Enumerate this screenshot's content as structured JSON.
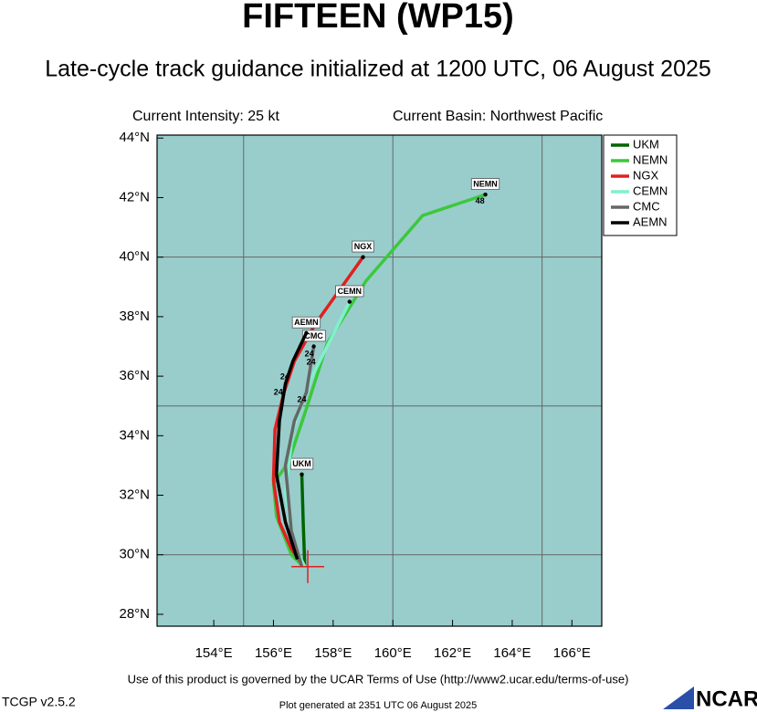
{
  "chart_data": {
    "type": "line",
    "title": "FIFTEEN (WP15)",
    "subtitle": "Late-cycle track guidance initialized at 1200 UTC, 06 August 2025",
    "intensity": "Current Intensity: 25 kt",
    "basin": "Current Basin: Northwest Pacific",
    "footer": "Use of this product is governed by the UCAR Terms of Use (http://www2.ucar.edu/terms-of-use)",
    "version": "TCGP v2.5.2",
    "generated": "Plot generated at 2351 UTC   06 August 2025",
    "logo": "NCAR",
    "xlim": [
      152.1,
      167.0
    ],
    "ylim": [
      27.6,
      44.1
    ],
    "xticks": [
      {
        "value": 154,
        "label": "154°E"
      },
      {
        "value": 156,
        "label": "156°E"
      },
      {
        "value": 158,
        "label": "158°E"
      },
      {
        "value": 160,
        "label": "160°E"
      },
      {
        "value": 162,
        "label": "162°E"
      },
      {
        "value": 164,
        "label": "164°E"
      },
      {
        "value": 166,
        "label": "166°E"
      }
    ],
    "yticks": [
      {
        "value": 28,
        "label": "28°N"
      },
      {
        "value": 30,
        "label": "30°N"
      },
      {
        "value": 32,
        "label": "32°N"
      },
      {
        "value": 34,
        "label": "34°N"
      },
      {
        "value": 36,
        "label": "36°N"
      },
      {
        "value": 38,
        "label": "38°N"
      },
      {
        "value": 40,
        "label": "40°N"
      },
      {
        "value": 42,
        "label": "42°N"
      },
      {
        "value": 44,
        "label": "44°N"
      }
    ],
    "xgrid": [
      155,
      160,
      165
    ],
    "ygrid": [
      30,
      35,
      40
    ],
    "background": "#99cdcc",
    "legend": "right",
    "current_position": {
      "x": 157.15,
      "y": 29.6
    },
    "series": [
      {
        "name": "UKM",
        "color": "#006400",
        "x": [
          157.05,
          157.0,
          156.95
        ],
        "y": [
          29.6,
          31.0,
          32.7
        ]
      },
      {
        "name": "NEMN",
        "color": "#3cc83c",
        "x": [
          157.0,
          156.6,
          156.1,
          156.0,
          156.5,
          157.1,
          157.8,
          159.1,
          161.0,
          163.1
        ],
        "y": [
          29.6,
          30.0,
          31.3,
          32.4,
          33.1,
          34.9,
          37.1,
          39.2,
          41.4,
          42.1
        ]
      },
      {
        "name": "NGX",
        "color": "#e02020",
        "x": [
          156.95,
          156.6,
          156.2,
          156.0,
          156.05,
          156.35,
          156.7,
          157.4,
          159.0
        ],
        "y": [
          29.7,
          30.2,
          31.1,
          32.5,
          34.2,
          35.45,
          36.5,
          37.75,
          40.0
        ]
      },
      {
        "name": "CEMN",
        "color": "#80f0cc",
        "x": [
          157.05,
          156.7,
          156.4,
          156.65,
          157.25,
          157.85,
          158.55
        ],
        "y": [
          29.6,
          30.3,
          32.1,
          34.2,
          35.9,
          37.1,
          38.5
        ]
      },
      {
        "name": "CMC",
        "color": "#666666",
        "x": [
          156.95,
          156.6,
          156.4,
          156.7,
          157.1,
          157.35
        ],
        "y": [
          29.6,
          30.8,
          33.0,
          34.5,
          35.45,
          37.0
        ]
      },
      {
        "name": "AEMN",
        "color": "#000000",
        "x": [
          156.8,
          156.4,
          156.1,
          156.2,
          156.4,
          156.65,
          157.1
        ],
        "y": [
          29.85,
          31.1,
          32.7,
          34.5,
          35.75,
          36.5,
          37.45
        ]
      }
    ],
    "annotations": [
      {
        "text": "24",
        "x": 156.38,
        "y": 35.97
      },
      {
        "text": "24",
        "x": 156.16,
        "y": 35.45
      },
      {
        "text": "24",
        "x": 156.95,
        "y": 35.2
      },
      {
        "text": "24",
        "x": 157.2,
        "y": 36.74
      },
      {
        "text": "24",
        "x": 157.26,
        "y": 36.46
      },
      {
        "text": "48",
        "x": 162.92,
        "y": 41.88
      }
    ]
  }
}
